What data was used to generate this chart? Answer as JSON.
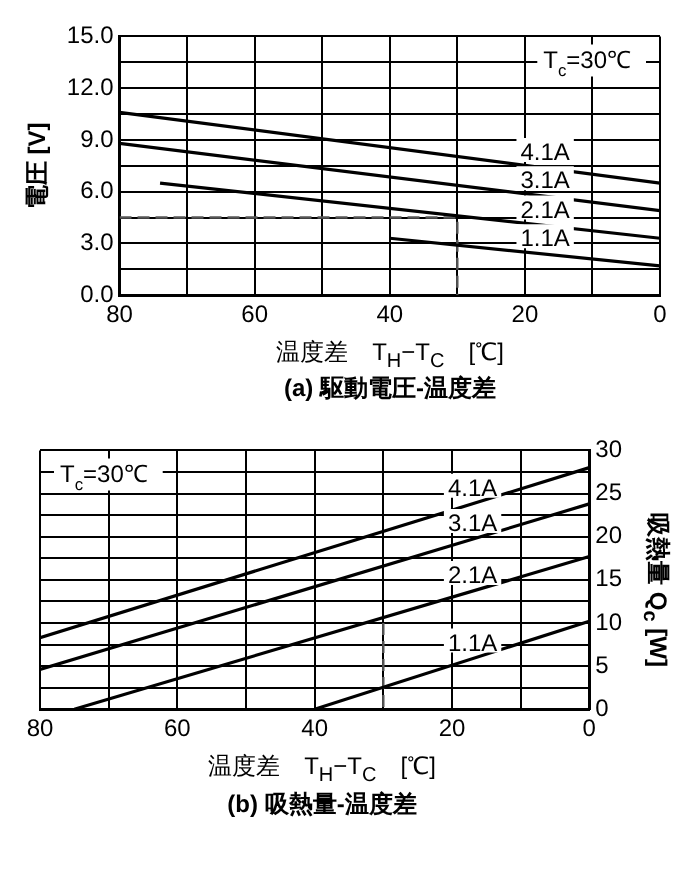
{
  "chart_data": [
    {
      "type": "line",
      "title": "(a) 駆動電圧-温度差",
      "xlabel": "温度差　T$_{H}$−T$_{C}$　[℃]",
      "ylabel": "電圧 [V]",
      "annotations": [
        "T$_{c}$=30℃"
      ],
      "xlim": [
        80,
        0
      ],
      "xticks": [
        80,
        {
          "value": 70,
          "label": null
        },
        60,
        {
          "value": 50,
          "label": null
        },
        40,
        {
          "value": 30,
          "label": null
        },
        20,
        {
          "value": 10,
          "label": null
        },
        0
      ],
      "ylim": [
        0,
        15
      ],
      "yticks": [
        {
          "value": 0,
          "label": "0.0"
        },
        {
          "value": 1.5,
          "label": null
        },
        {
          "value": 3,
          "label": "3.0"
        },
        {
          "value": 4.5,
          "label": null
        },
        {
          "value": 6,
          "label": "6.0"
        },
        {
          "value": 7.5,
          "label": null
        },
        {
          "value": 9,
          "label": "9.0"
        },
        {
          "value": 10.5,
          "label": null
        },
        {
          "value": 12,
          "label": "12.0"
        },
        {
          "value": 13.5,
          "label": null
        },
        {
          "value": 15,
          "label": "15.0"
        }
      ],
      "grid": true,
      "marker": "none",
      "line_style": "solid",
      "series": [
        {
          "name": "4.1A",
          "color": "#000000",
          "x": [
            80,
            0
          ],
          "values": [
            10.6,
            6.5
          ]
        },
        {
          "name": "3.1A",
          "color": "#000000",
          "x": [
            80,
            0
          ],
          "values": [
            8.8,
            4.9
          ]
        },
        {
          "name": "2.1A",
          "color": "#000000",
          "x": [
            74,
            0
          ],
          "values": [
            6.5,
            3.3
          ]
        },
        {
          "name": "1.1A",
          "color": "#000000",
          "x": [
            40,
            0
          ],
          "values": [
            3.3,
            1.7
          ]
        },
        {
          "color": "#555555",
          "x": [
            80,
            30,
            30
          ],
          "values": [
            4.5,
            4.5,
            0
          ],
          "line_style": "dashed"
        }
      ]
    },
    {
      "type": "line",
      "title": "(b) 吸熱量-温度差",
      "xlabel": "温度差　T$_{H}$−T$_{C}$　[℃]",
      "y2label": "吸熱量 Q$_{c}$ [W]",
      "annotations": [
        "T$_{c}$=30℃"
      ],
      "xlim": [
        80,
        0
      ],
      "xticks": [
        80,
        {
          "value": 70,
          "label": null
        },
        60,
        {
          "value": 50,
          "label": null
        },
        40,
        {
          "value": 30,
          "label": null
        },
        20,
        {
          "value": 10,
          "label": null
        },
        0
      ],
      "y2lim": [
        0,
        30
      ],
      "y2ticks": [
        0,
        {
          "value": 2.5,
          "label": null
        },
        5,
        {
          "value": 7.5,
          "label": null
        },
        10,
        {
          "value": 12.5,
          "label": null
        },
        15,
        {
          "value": 17.5,
          "label": null
        },
        20,
        {
          "value": 22.5,
          "label": null
        },
        25,
        {
          "value": 27.5,
          "label": null
        },
        30
      ],
      "grid": true,
      "marker": "none",
      "line_style": "solid",
      "series": [
        {
          "name": "4.1A",
          "color": "#000000",
          "axis": "y2",
          "x": [
            80,
            0
          ],
          "values": [
            8.3,
            28
          ]
        },
        {
          "name": "3.1A",
          "color": "#000000",
          "axis": "y2",
          "x": [
            80,
            0
          ],
          "values": [
            4.6,
            23.8
          ]
        },
        {
          "name": "2.1A",
          "color": "#000000",
          "axis": "y2",
          "x": [
            75,
            0
          ],
          "values": [
            0,
            17.7
          ]
        },
        {
          "name": "1.1A",
          "color": "#000000",
          "axis": "y2",
          "x": [
            40,
            0
          ],
          "values": [
            0,
            10.2
          ]
        },
        {
          "color": "#555555",
          "axis": "y2",
          "x": [
            30,
            30
          ],
          "values": [
            10,
            0
          ],
          "line_style": "dashed"
        }
      ]
    }
  ]
}
